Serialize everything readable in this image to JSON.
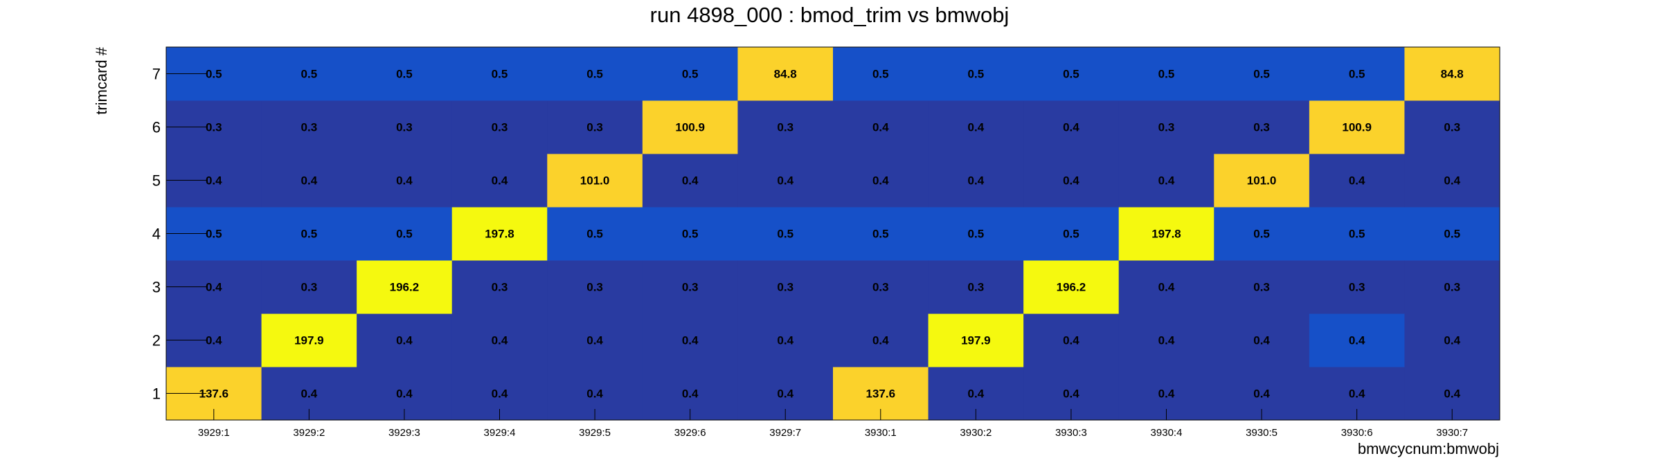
{
  "chart_data": {
    "type": "heatmap",
    "title": "run 4898_000 : bmod_trim vs bmwobj",
    "xlabel": "bmwcycnum:bmwobj",
    "ylabel": "trimcard #",
    "x_categories": [
      "3929:1",
      "3929:2",
      "3929:3",
      "3929:4",
      "3929:5",
      "3929:6",
      "3929:7",
      "3930:1",
      "3930:2",
      "3930:3",
      "3930:4",
      "3930:5",
      "3930:6",
      "3930:7"
    ],
    "y_categories": [
      "1",
      "2",
      "3",
      "4",
      "5",
      "6",
      "7"
    ],
    "values": [
      [
        137.6,
        0.4,
        0.4,
        0.4,
        0.4,
        0.4,
        0.4,
        137.6,
        0.4,
        0.4,
        0.4,
        0.4,
        0.4,
        0.4
      ],
      [
        0.4,
        197.9,
        0.4,
        0.4,
        0.4,
        0.4,
        0.4,
        0.4,
        197.9,
        0.4,
        0.4,
        0.4,
        0.4,
        0.4
      ],
      [
        0.4,
        0.3,
        196.2,
        0.3,
        0.3,
        0.3,
        0.3,
        0.3,
        0.3,
        196.2,
        0.4,
        0.3,
        0.3,
        0.3
      ],
      [
        0.5,
        0.5,
        0.5,
        197.8,
        0.5,
        0.5,
        0.5,
        0.5,
        0.5,
        0.5,
        197.8,
        0.5,
        0.5,
        0.5
      ],
      [
        0.4,
        0.4,
        0.4,
        0.4,
        101.0,
        0.4,
        0.4,
        0.4,
        0.4,
        0.4,
        0.4,
        101.0,
        0.4,
        0.4
      ],
      [
        0.3,
        0.3,
        0.3,
        0.3,
        0.3,
        100.9,
        0.3,
        0.4,
        0.4,
        0.4,
        0.3,
        0.3,
        100.9,
        0.3
      ],
      [
        0.5,
        0.5,
        0.5,
        0.5,
        0.5,
        0.5,
        84.8,
        0.5,
        0.5,
        0.5,
        0.5,
        0.5,
        0.5,
        84.8
      ]
    ],
    "value_labels": [
      [
        "137.6",
        "0.4",
        "0.4",
        "0.4",
        "0.4",
        "0.4",
        "0.4",
        "137.6",
        "0.4",
        "0.4",
        "0.4",
        "0.4",
        "0.4",
        "0.4"
      ],
      [
        "0.4",
        "197.9",
        "0.4",
        "0.4",
        "0.4",
        "0.4",
        "0.4",
        "0.4",
        "197.9",
        "0.4",
        "0.4",
        "0.4",
        "0.4",
        "0.4"
      ],
      [
        "0.4",
        "0.3",
        "196.2",
        "0.3",
        "0.3",
        "0.3",
        "0.3",
        "0.3",
        "0.3",
        "196.2",
        "0.4",
        "0.3",
        "0.3",
        "0.3"
      ],
      [
        "0.5",
        "0.5",
        "0.5",
        "197.8",
        "0.5",
        "0.5",
        "0.5",
        "0.5",
        "0.5",
        "0.5",
        "197.8",
        "0.5",
        "0.5",
        "0.5"
      ],
      [
        "0.4",
        "0.4",
        "0.4",
        "0.4",
        "101.0",
        "0.4",
        "0.4",
        "0.4",
        "0.4",
        "0.4",
        "0.4",
        "101.0",
        "0.4",
        "0.4"
      ],
      [
        "0.3",
        "0.3",
        "0.3",
        "0.3",
        "0.3",
        "100.9",
        "0.3",
        "0.4",
        "0.4",
        "0.4",
        "0.3",
        "0.3",
        "100.9",
        "0.3"
      ],
      [
        "0.5",
        "0.5",
        "0.5",
        "0.5",
        "0.5",
        "0.5",
        "84.8",
        "0.5",
        "0.5",
        "0.5",
        "0.5",
        "0.5",
        "0.5",
        "84.8"
      ]
    ],
    "colors": {
      "low": "#293ba1",
      "low_alt": "#1650c8",
      "mid": "#fbd22b",
      "high": "#f5f90f"
    },
    "highlighted_low_cells": [
      [
        1,
        12
      ]
    ],
    "grid": false,
    "legend": "none"
  }
}
